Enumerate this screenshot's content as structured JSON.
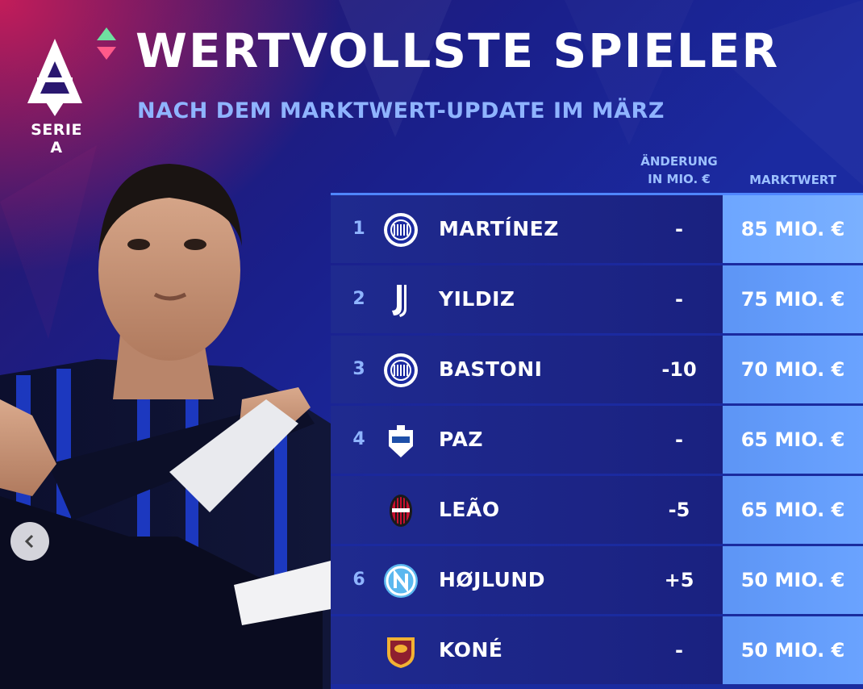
{
  "brand": {
    "league_logo_label": "SERIE A",
    "accent": "#8fb4ff",
    "value_column_color": "#6aa3ff",
    "background_color": "#1a2c9e"
  },
  "header": {
    "title": "WERTVOLLSTE SPIELER",
    "subtitle": "NACH DEM MARKTWERT-UPDATE IM MÄRZ"
  },
  "table": {
    "columns": {
      "change_line1": "ÄNDERUNG",
      "change_line2": "IN MIO. €",
      "market_value": "MARKTWERT"
    },
    "rows": [
      {
        "rank": "1",
        "club_icon": "inter-crest-icon",
        "name": "MARTÍNEZ",
        "change": "-",
        "value": "85 MIO. €"
      },
      {
        "rank": "2",
        "club_icon": "juventus-crest-icon",
        "name": "YILDIZ",
        "change": "-",
        "value": "75 MIO. €"
      },
      {
        "rank": "3",
        "club_icon": "inter-crest-icon",
        "name": "BASTONI",
        "change": "-10",
        "value": "70 MIO. €"
      },
      {
        "rank": "4",
        "club_icon": "como-crest-icon",
        "name": "PAZ",
        "change": "-",
        "value": "65 MIO. €"
      },
      {
        "rank": "",
        "club_icon": "milan-crest-icon",
        "name": "LEÃO",
        "change": "-5",
        "value": "65 MIO. €"
      },
      {
        "rank": "6",
        "club_icon": "napoli-crest-icon",
        "name": "HØJLUND",
        "change": "+5",
        "value": "50 MIO. €"
      },
      {
        "rank": "",
        "club_icon": "roma-crest-icon",
        "name": "KONÉ",
        "change": "-",
        "value": "50 MIO. €"
      }
    ]
  },
  "player_photo": {
    "icon": "player-photo"
  },
  "navigation": {
    "prev_icon": "chevron-left-icon"
  }
}
